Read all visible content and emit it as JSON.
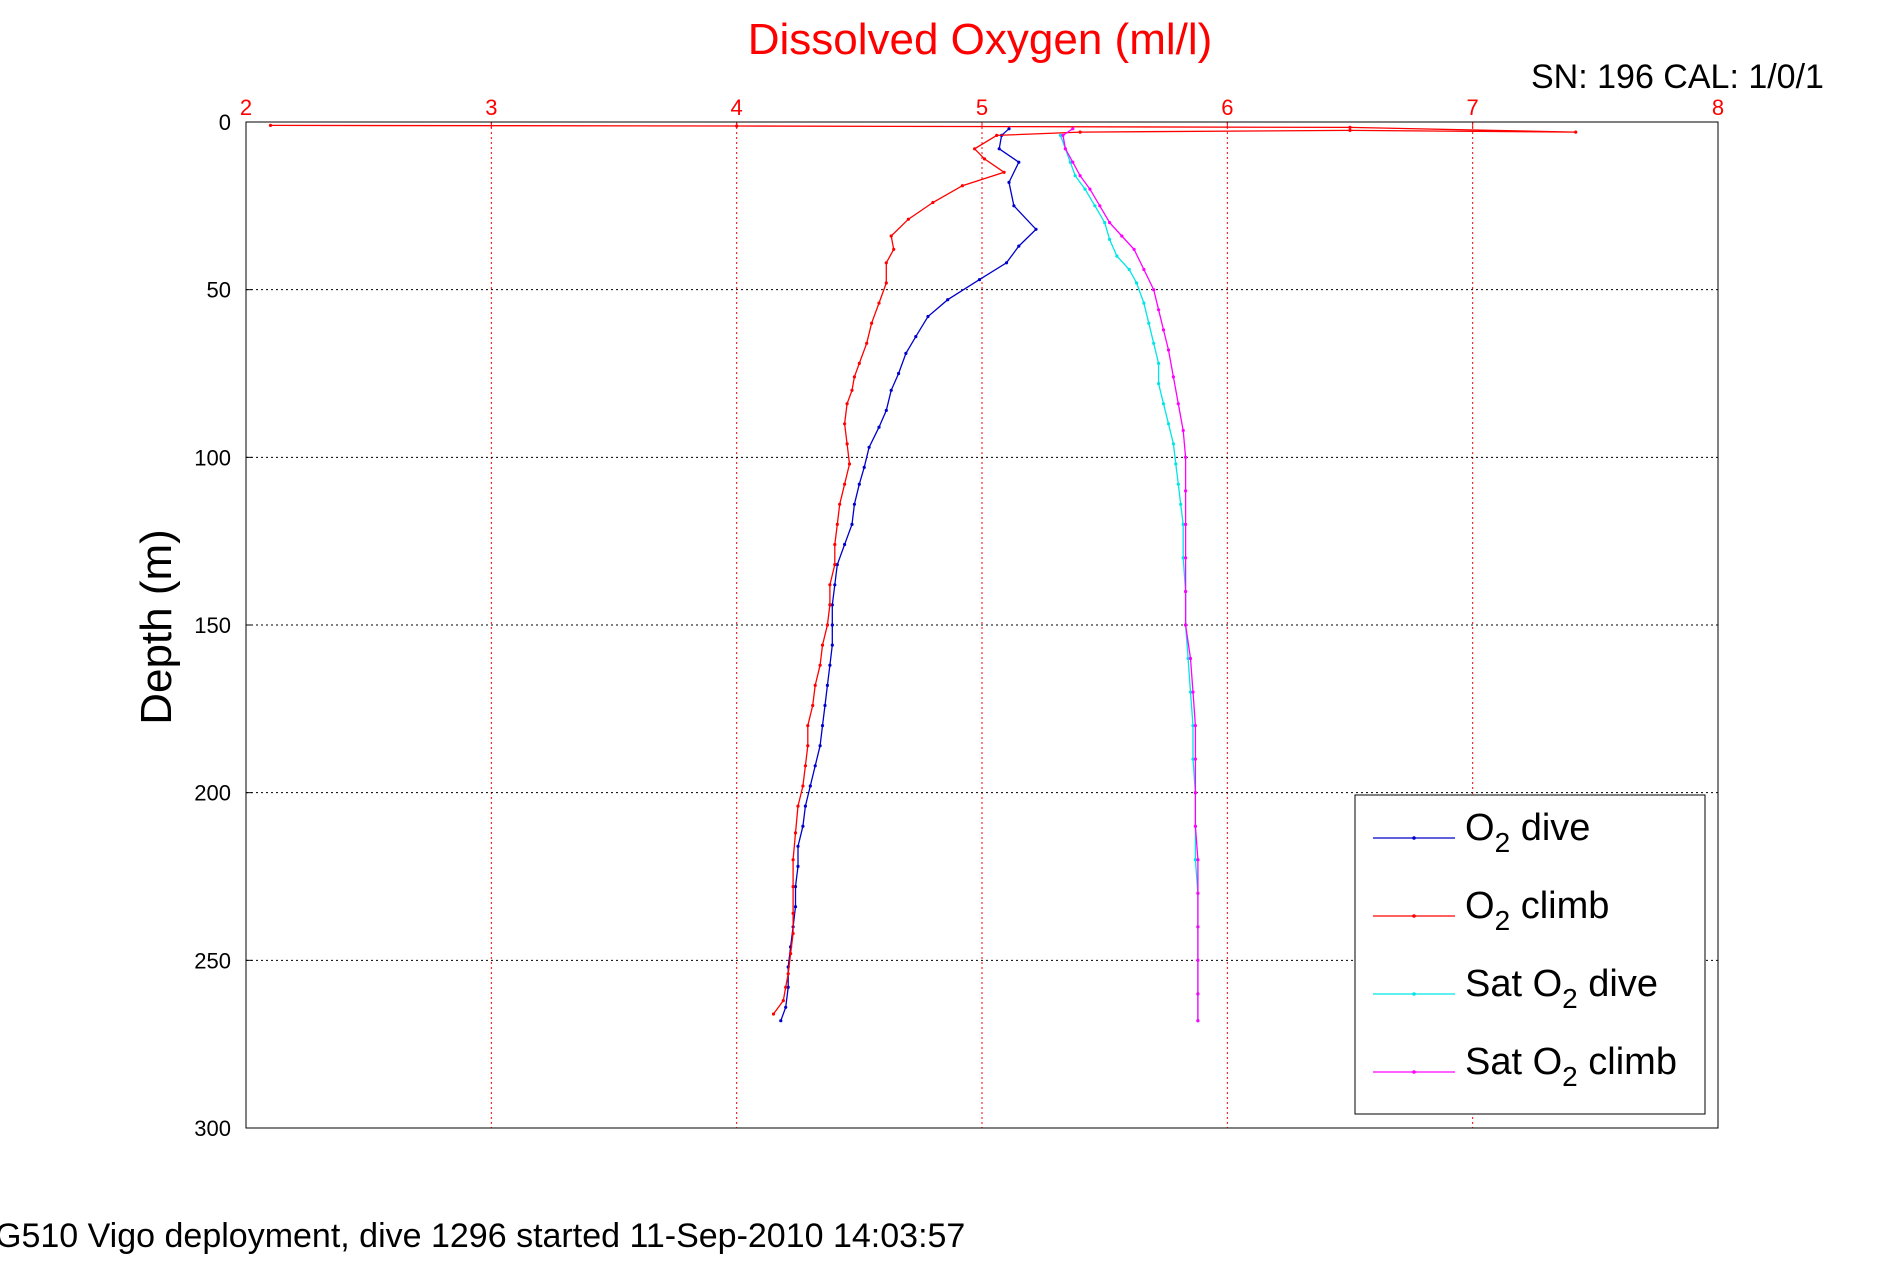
{
  "chart_data": {
    "type": "line",
    "title": "Dissolved Oxygen (ml/l)",
    "ylabel": "Depth (m)",
    "corner_label": "SN: 196  CAL: 1/0/1",
    "footer": "G510 Vigo deployment, dive 1296 started 11-Sep-2010 14:03:57",
    "xlim": [
      2,
      8
    ],
    "ylim": [
      0,
      300
    ],
    "y_reversed": true,
    "x_axis_position": "top",
    "xticks": [
      2,
      3,
      4,
      5,
      6,
      7,
      8
    ],
    "yticks": [
      0,
      50,
      100,
      150,
      200,
      250,
      300
    ],
    "grid": true,
    "legend_position": "bottom-right",
    "colors": {
      "axis_x": "#ff0000",
      "title": "#ff0000",
      "o2_dive": "#0000cc",
      "o2_climb": "#ff0000",
      "sat_dive": "#00e5e5",
      "sat_climb": "#ff00ff"
    },
    "series": [
      {
        "key": "o2_dive",
        "name": "O2 dive",
        "legend_main": "O",
        "legend_sub": "2",
        "legend_rest": " dive",
        "points": [
          [
            5.11,
            2
          ],
          [
            5.08,
            4
          ],
          [
            5.07,
            8
          ],
          [
            5.15,
            12
          ],
          [
            5.11,
            18
          ],
          [
            5.13,
            25
          ],
          [
            5.22,
            32
          ],
          [
            5.15,
            37
          ],
          [
            5.1,
            42
          ],
          [
            4.99,
            47
          ],
          [
            4.86,
            53
          ],
          [
            4.78,
            58
          ],
          [
            4.73,
            64
          ],
          [
            4.69,
            69
          ],
          [
            4.66,
            75
          ],
          [
            4.63,
            80
          ],
          [
            4.61,
            86
          ],
          [
            4.58,
            91
          ],
          [
            4.54,
            97
          ],
          [
            4.52,
            103
          ],
          [
            4.5,
            108
          ],
          [
            4.48,
            114
          ],
          [
            4.47,
            120
          ],
          [
            4.44,
            126
          ],
          [
            4.41,
            132
          ],
          [
            4.4,
            138
          ],
          [
            4.39,
            144
          ],
          [
            4.39,
            150
          ],
          [
            4.39,
            156
          ],
          [
            4.38,
            162
          ],
          [
            4.37,
            168
          ],
          [
            4.36,
            174
          ],
          [
            4.35,
            180
          ],
          [
            4.34,
            186
          ],
          [
            4.32,
            192
          ],
          [
            4.3,
            198
          ],
          [
            4.28,
            204
          ],
          [
            4.27,
            210
          ],
          [
            4.25,
            216
          ],
          [
            4.25,
            222
          ],
          [
            4.24,
            228
          ],
          [
            4.24,
            234
          ],
          [
            4.23,
            240
          ],
          [
            4.22,
            246
          ],
          [
            4.21,
            252
          ],
          [
            4.21,
            258
          ],
          [
            4.2,
            264
          ],
          [
            4.18,
            268
          ]
        ]
      },
      {
        "key": "o2_climb",
        "name": "O2 climb",
        "legend_main": "O",
        "legend_sub": "2",
        "legend_rest": " climb",
        "points": [
          [
            4.15,
            266
          ],
          [
            4.19,
            262
          ],
          [
            4.2,
            258
          ],
          [
            4.21,
            254
          ],
          [
            4.22,
            248
          ],
          [
            4.23,
            242
          ],
          [
            4.23,
            236
          ],
          [
            4.23,
            228
          ],
          [
            4.23,
            220
          ],
          [
            4.24,
            212
          ],
          [
            4.25,
            204
          ],
          [
            4.27,
            198
          ],
          [
            4.28,
            192
          ],
          [
            4.29,
            186
          ],
          [
            4.29,
            180
          ],
          [
            4.31,
            174
          ],
          [
            4.32,
            168
          ],
          [
            4.34,
            162
          ],
          [
            4.35,
            156
          ],
          [
            4.37,
            150
          ],
          [
            4.38,
            144
          ],
          [
            4.38,
            138
          ],
          [
            4.4,
            132
          ],
          [
            4.4,
            126
          ],
          [
            4.41,
            120
          ],
          [
            4.42,
            114
          ],
          [
            4.44,
            108
          ],
          [
            4.46,
            102
          ],
          [
            4.45,
            96
          ],
          [
            4.44,
            90
          ],
          [
            4.45,
            84
          ],
          [
            4.47,
            80
          ],
          [
            4.48,
            76
          ],
          [
            4.5,
            72
          ],
          [
            4.53,
            66
          ],
          [
            4.55,
            60
          ],
          [
            4.58,
            54
          ],
          [
            4.61,
            48
          ],
          [
            4.61,
            42
          ],
          [
            4.64,
            38
          ],
          [
            4.63,
            34
          ],
          [
            4.7,
            29
          ],
          [
            4.8,
            24
          ],
          [
            4.92,
            19
          ],
          [
            5.09,
            15
          ],
          [
            5.01,
            11
          ],
          [
            4.97,
            8
          ],
          [
            5.06,
            4
          ],
          [
            5.4,
            3
          ],
          [
            6.5,
            2.5
          ],
          [
            7.42,
            3
          ],
          [
            6.5,
            1.6
          ],
          [
            4.0,
            1.2
          ],
          [
            2.1,
            1
          ]
        ]
      },
      {
        "key": "sat_dive",
        "name": "Sat O2 dive",
        "legend_main": "Sat O",
        "legend_sub": "2",
        "legend_rest": " dive",
        "points": [
          [
            5.32,
            4
          ],
          [
            5.34,
            8
          ],
          [
            5.36,
            12
          ],
          [
            5.38,
            16
          ],
          [
            5.42,
            20
          ],
          [
            5.46,
            25
          ],
          [
            5.5,
            30
          ],
          [
            5.52,
            35
          ],
          [
            5.55,
            40
          ],
          [
            5.6,
            44
          ],
          [
            5.63,
            48
          ],
          [
            5.66,
            54
          ],
          [
            5.68,
            60
          ],
          [
            5.7,
            66
          ],
          [
            5.72,
            72
          ],
          [
            5.72,
            78
          ],
          [
            5.74,
            84
          ],
          [
            5.76,
            90
          ],
          [
            5.78,
            96
          ],
          [
            5.79,
            102
          ],
          [
            5.8,
            108
          ],
          [
            5.81,
            114
          ],
          [
            5.82,
            120
          ],
          [
            5.82,
            130
          ],
          [
            5.83,
            140
          ],
          [
            5.83,
            150
          ],
          [
            5.84,
            160
          ],
          [
            5.85,
            170
          ],
          [
            5.86,
            180
          ],
          [
            5.86,
            190
          ],
          [
            5.87,
            200
          ],
          [
            5.87,
            210
          ],
          [
            5.87,
            220
          ],
          [
            5.88,
            230
          ],
          [
            5.88,
            240
          ],
          [
            5.88,
            250
          ],
          [
            5.88,
            260
          ],
          [
            5.88,
            268
          ]
        ]
      },
      {
        "key": "sat_climb",
        "name": "Sat O2 climb",
        "legend_main": "Sat O",
        "legend_sub": "2",
        "legend_rest": " climb",
        "points": [
          [
            5.88,
            268
          ],
          [
            5.88,
            260
          ],
          [
            5.88,
            250
          ],
          [
            5.88,
            240
          ],
          [
            5.88,
            230
          ],
          [
            5.88,
            220
          ],
          [
            5.87,
            210
          ],
          [
            5.87,
            200
          ],
          [
            5.87,
            190
          ],
          [
            5.87,
            180
          ],
          [
            5.86,
            170
          ],
          [
            5.85,
            160
          ],
          [
            5.83,
            150
          ],
          [
            5.83,
            140
          ],
          [
            5.83,
            130
          ],
          [
            5.83,
            120
          ],
          [
            5.83,
            110
          ],
          [
            5.83,
            100
          ],
          [
            5.82,
            92
          ],
          [
            5.8,
            84
          ],
          [
            5.78,
            76
          ],
          [
            5.76,
            68
          ],
          [
            5.74,
            62
          ],
          [
            5.72,
            56
          ],
          [
            5.7,
            50
          ],
          [
            5.66,
            44
          ],
          [
            5.62,
            38
          ],
          [
            5.57,
            34
          ],
          [
            5.52,
            30
          ],
          [
            5.48,
            25
          ],
          [
            5.44,
            20
          ],
          [
            5.4,
            16
          ],
          [
            5.37,
            12
          ],
          [
            5.34,
            8
          ],
          [
            5.33,
            4
          ],
          [
            5.37,
            2
          ]
        ]
      }
    ]
  }
}
